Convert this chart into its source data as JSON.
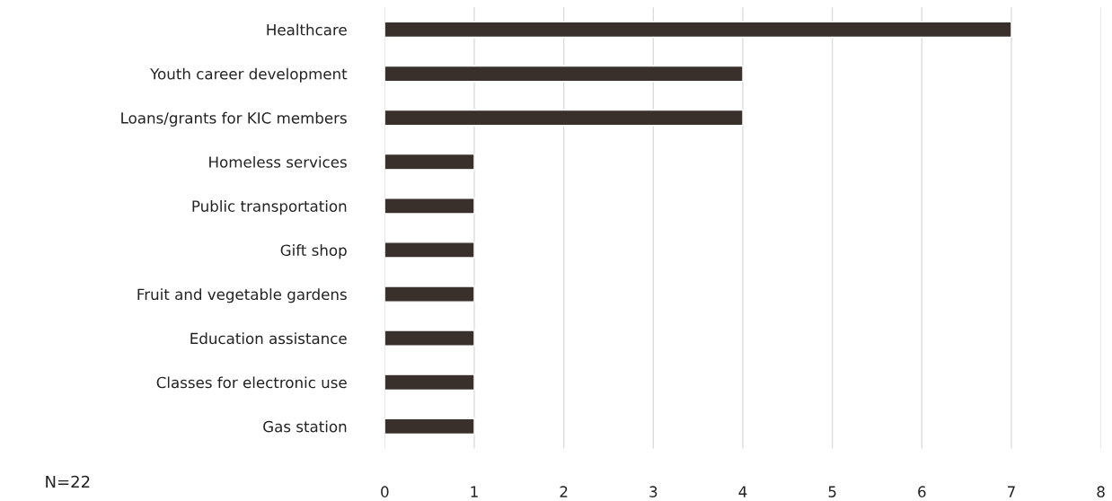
{
  "chart_data": {
    "type": "bar",
    "orientation": "horizontal",
    "categories": [
      "Healthcare",
      "Youth career development",
      "Loans/grants for KIC members",
      "Homeless services",
      "Public transportation",
      "Gift shop",
      "Fruit and vegetable gardens",
      "Education assistance",
      "Classes for electronic use",
      "Gas station"
    ],
    "values": [
      7,
      4,
      4,
      1,
      1,
      1,
      1,
      1,
      1,
      1
    ],
    "color": "#3a302b",
    "xlim": [
      0,
      8
    ],
    "xticks": [
      0,
      1,
      2,
      3,
      4,
      5,
      6,
      7,
      8
    ],
    "grid": "x",
    "annotations": [
      "N=22"
    ]
  }
}
